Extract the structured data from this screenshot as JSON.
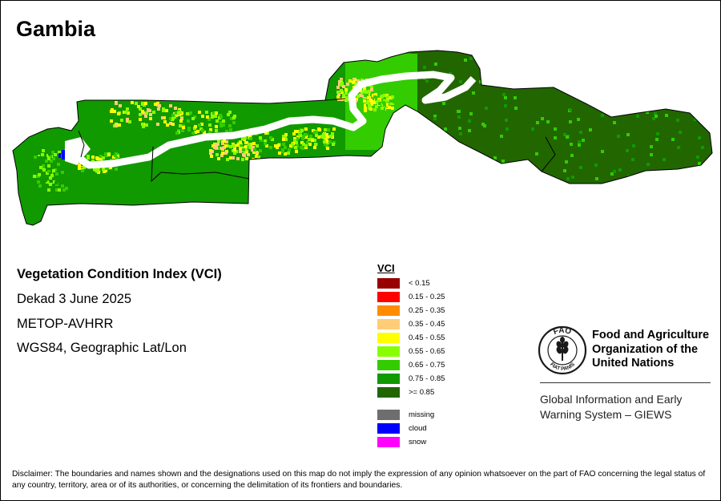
{
  "map_title": "Gambia",
  "info": {
    "index_name": "Vegetation Condition Index (VCI)",
    "period": "Dekad 3 June 2025",
    "sensor": "METOP-AVHRR",
    "projection": "WGS84, Geographic Lat/Lon"
  },
  "legend": {
    "title": "VCI",
    "classes": [
      {
        "label": "< 0.15",
        "color": "#990000"
      },
      {
        "label": "0.15 - 0.25",
        "color": "#ff0000"
      },
      {
        "label": "0.25 - 0.35",
        "color": "#ff8c00"
      },
      {
        "label": "0.35 - 0.45",
        "color": "#ffcc77"
      },
      {
        "label": "0.45 - 0.55",
        "color": "#ffff00"
      },
      {
        "label": "0.55 - 0.65",
        "color": "#88ff00"
      },
      {
        "label": "0.65 - 0.75",
        "color": "#33cc00"
      },
      {
        "label": "0.75 - 0.85",
        "color": "#119900"
      },
      {
        "label": ">= 0.85",
        "color": "#226600"
      }
    ],
    "special": [
      {
        "label": "missing",
        "color": "#6e6e6e"
      },
      {
        "label": "cloud",
        "color": "#0000ff"
      },
      {
        "label": "snow",
        "color": "#ff00ff"
      }
    ]
  },
  "organization": {
    "name_line1": "Food and Agriculture",
    "name_line2": "Organization of the",
    "name_line3": "United Nations",
    "logo_acronym": "FAO",
    "logo_motto": "FIAT PANIS",
    "system_line1": "Global Information and Early",
    "system_line2": "Warning System – GIEWS"
  },
  "disclaimer": "Disclaimer: The boundaries and names shown and the designations used on this map do not imply the expression of any opinion whatsoever on the part of FAO concerning the legal status of any country, territory, area or of its authorities, or concerning the delimitation of its frontiers and boundaries."
}
